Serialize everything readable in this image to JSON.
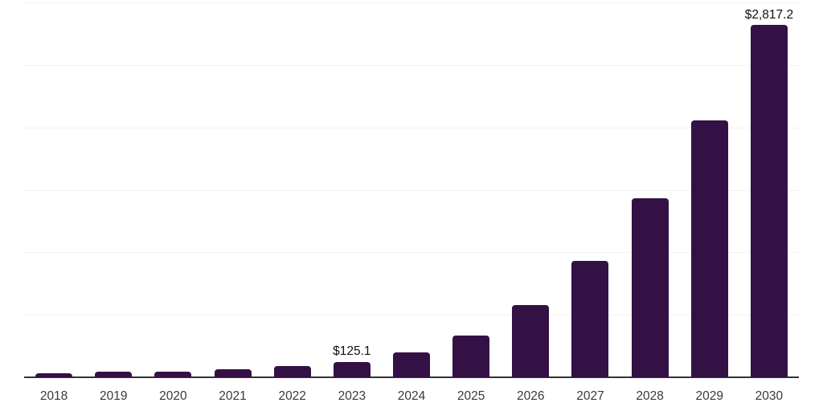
{
  "chart_data": {
    "type": "bar",
    "categories": [
      "2018",
      "2019",
      "2020",
      "2021",
      "2022",
      "2023",
      "2024",
      "2025",
      "2026",
      "2027",
      "2028",
      "2029",
      "2030"
    ],
    "values": [
      30,
      47,
      43,
      62,
      88,
      125.1,
      197,
      336,
      578,
      930,
      1430,
      2055,
      2817.2
    ],
    "labeled_points": [
      {
        "category": "2023",
        "label": "$125.1"
      },
      {
        "category": "2030",
        "label": "$2,817.2"
      }
    ],
    "title": "",
    "xlabel": "",
    "ylabel": "",
    "ylim": [
      0,
      3000
    ],
    "gridline_interval": 500,
    "grid": "horizontal-only",
    "legend": "none",
    "y_axis_labels": "none",
    "colors": {
      "bar": "#331145",
      "gridline": "#f2f2f2",
      "axis_line": "#333333",
      "tick_label": "#3a3a3a",
      "data_label": "#111111",
      "background": "#ffffff"
    }
  }
}
